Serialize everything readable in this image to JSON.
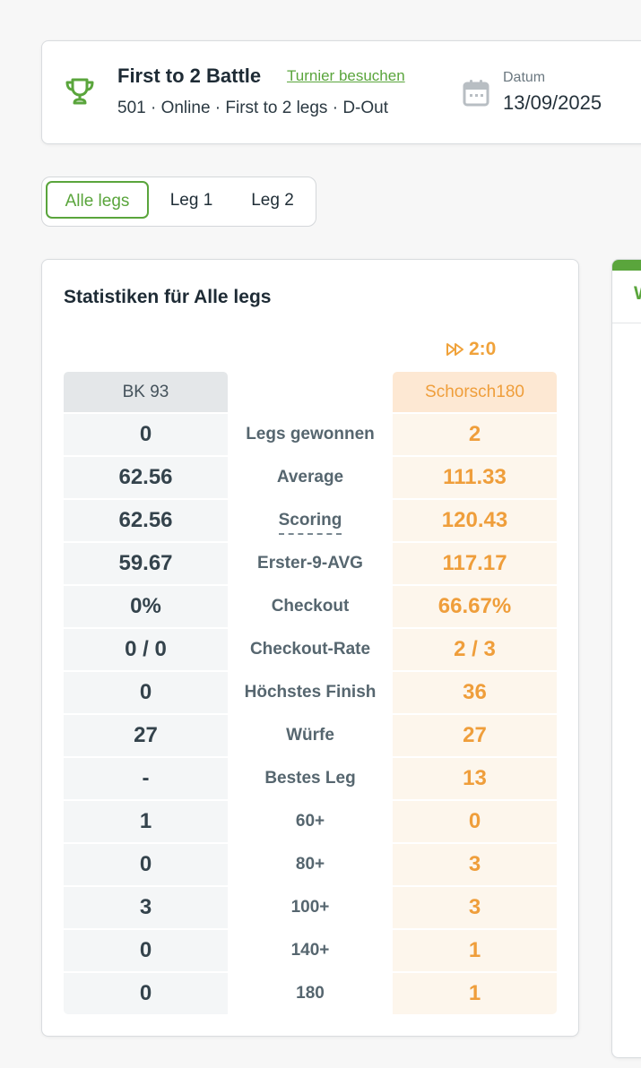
{
  "tournament": {
    "title": "First to 2 Battle",
    "link_label": "Turnier besuchen",
    "subtitle": "501 · Online · First to 2 legs · D-Out",
    "date_label": "Datum",
    "date_value": "13/09/2025",
    "icon": "trophy-icon",
    "date_icon": "calendar-icon"
  },
  "tabs": [
    {
      "label": "Alle legs",
      "active": true
    },
    {
      "label": "Leg 1",
      "active": false
    },
    {
      "label": "Leg 2",
      "active": false
    }
  ],
  "stats": {
    "title": "Statistiken für Alle legs",
    "score": "2:0",
    "score_icon": "fast-forward-icon",
    "player_left": "BK 93",
    "player_right": "Schorsch180",
    "rows": [
      {
        "label": "Legs gewonnen",
        "left": "0",
        "right": "2"
      },
      {
        "label": "Average",
        "left": "62.56",
        "right": "111.33"
      },
      {
        "label": "Scoring",
        "left": "62.56",
        "right": "120.43"
      },
      {
        "label": "Erster-9-AVG",
        "left": "59.67",
        "right": "117.17"
      },
      {
        "label": "Checkout",
        "left": "0%",
        "right": "66.67%"
      },
      {
        "label": "Checkout-Rate",
        "left": "0 / 0",
        "right": "2 / 3"
      },
      {
        "label": "Höchstes Finish",
        "left": "0",
        "right": "36"
      },
      {
        "label": "Würfe",
        "left": "27",
        "right": "27"
      },
      {
        "label": "Bestes Leg",
        "left": "-",
        "right": "13"
      },
      {
        "label": "60+",
        "left": "1",
        "right": "0"
      },
      {
        "label": "80+",
        "left": "0",
        "right": "3"
      },
      {
        "label": "100+",
        "left": "3",
        "right": "3"
      },
      {
        "label": "140+",
        "left": "0",
        "right": "1"
      },
      {
        "label": "180",
        "left": "0",
        "right": "1"
      }
    ]
  },
  "side_panel": {
    "title_fragment": "W"
  },
  "colors": {
    "accent_green": "#5aa53c",
    "accent_orange": "#ef9e3b",
    "text_dark": "#1e2b35"
  }
}
